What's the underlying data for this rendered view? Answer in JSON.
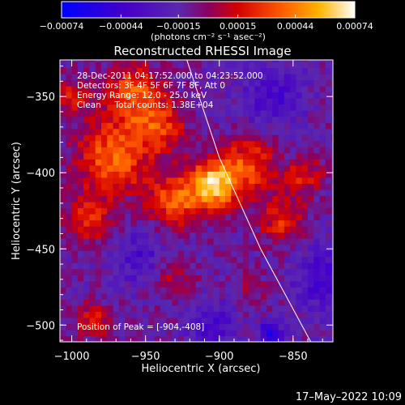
{
  "chart_data": {
    "type": "heatmap",
    "title": "Reconstructed RHESSI Image",
    "xlabel": "Heliocentric X (arcsec)",
    "ylabel": "Heliocentric Y (arcsec)",
    "xlim": [
      -1008,
      -823
    ],
    "ylim": [
      -511,
      -326
    ],
    "x_ticks": [
      {
        "value": -1000,
        "label": "−1000"
      },
      {
        "value": -950,
        "label": "−950"
      },
      {
        "value": -900,
        "label": "−900"
      },
      {
        "value": -850,
        "label": "−850"
      }
    ],
    "y_ticks": [
      {
        "value": -350,
        "label": "−350"
      },
      {
        "value": -400,
        "label": "−400"
      },
      {
        "value": -450,
        "label": "−450"
      },
      {
        "value": -500,
        "label": "−500"
      }
    ],
    "colorbar": {
      "range": [
        -0.00074,
        0.00074
      ],
      "ticks": [
        {
          "value": -0.00074,
          "label": "−0.00074"
        },
        {
          "value": -0.00044,
          "label": "−0.00044"
        },
        {
          "value": -0.00015,
          "label": "−0.00015"
        },
        {
          "value": 0.00015,
          "label": "0.00015"
        },
        {
          "value": 0.00044,
          "label": "0.00044"
        },
        {
          "value": 0.00074,
          "label": "0.00074"
        }
      ],
      "units_label": "(photons cm⁻² s⁻¹ asec⁻²)"
    },
    "annotations": [
      "28-Dec-2011 04:17:52.000 to 04:23:52.000",
      "Detectors: 3F 4F 5F 6F 7F 8F, Att 0",
      "Energy Range: 12.0 - 25.0 keV",
      "Clean     Total counts: 1.38E+04"
    ],
    "peak_label": "Position of Peak = [-904,-408]",
    "peak": {
      "x": -904,
      "y": -408,
      "value": 0.00074
    },
    "limb_curve": [
      [
        -922,
        -326
      ],
      [
        -900,
        -390
      ],
      [
        -872,
        -450
      ],
      [
        -838,
        -511
      ]
    ],
    "sources": [
      {
        "x": -904,
        "y": -408,
        "peak": 0.00074,
        "sigma": 11
      },
      {
        "x": -930,
        "y": -418,
        "peak": 0.00046,
        "sigma": 12
      },
      {
        "x": -880,
        "y": -395,
        "peak": 0.00042,
        "sigma": 13
      },
      {
        "x": -972,
        "y": -390,
        "peak": 0.0005,
        "sigma": 17
      },
      {
        "x": -958,
        "y": -348,
        "peak": 0.00044,
        "sigma": 14
      },
      {
        "x": -988,
        "y": -430,
        "peak": 0.00038,
        "sigma": 10
      },
      {
        "x": -940,
        "y": -370,
        "peak": 0.00036,
        "sigma": 12
      },
      {
        "x": -858,
        "y": -430,
        "peak": 0.00034,
        "sigma": 11
      },
      {
        "x": -842,
        "y": -402,
        "peak": 0.0003,
        "sigma": 9
      },
      {
        "x": -985,
        "y": -497,
        "peak": 0.0003,
        "sigma": 8
      },
      {
        "x": -930,
        "y": -470,
        "peak": 0.0002,
        "sigma": 9
      },
      {
        "x": -1000,
        "y": -350,
        "peak": 0.00026,
        "sigma": 9
      },
      {
        "x": -880,
        "y": -478,
        "peak": 0.00016,
        "sigma": 8
      },
      {
        "x": -865,
        "y": -350,
        "peak": -0.00026,
        "sigma": 15
      },
      {
        "x": -830,
        "y": -470,
        "peak": -0.0003,
        "sigma": 14
      },
      {
        "x": -955,
        "y": -455,
        "peak": -0.00022,
        "sigma": 12
      },
      {
        "x": -905,
        "y": -500,
        "peak": -0.00026,
        "sigma": 12
      },
      {
        "x": -865,
        "y": -505,
        "peak": -0.00042,
        "sigma": 6
      }
    ],
    "background_level": -0.00012
  },
  "footer_timestamp": "17–May–2022 10:09"
}
